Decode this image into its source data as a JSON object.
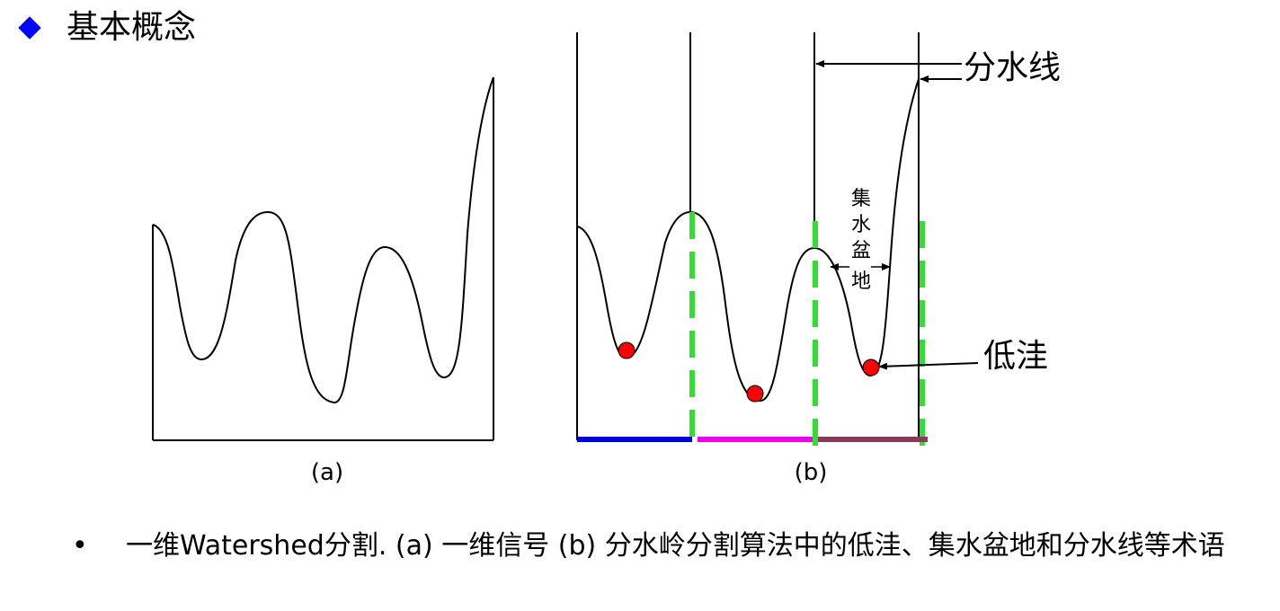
{
  "heading": {
    "icon": "diamond-bullet-icon",
    "text": "基本概念",
    "bullet_color": "#0000ff"
  },
  "figure_a": {
    "label": "(a)"
  },
  "figure_b": {
    "label": "(b)",
    "watershed_label": "分水线",
    "basin_label_chars": [
      "集",
      "水",
      "盆",
      "地"
    ],
    "minimum_label": "低洼",
    "colors": {
      "minima": "#ff0000",
      "dam": "#33dd33",
      "basin1": "#0000dd",
      "basin2": "#ee00ee",
      "basin3": "#8b3a5a"
    }
  },
  "caption": {
    "bullet": "•",
    "text": "一维Watershed分割. (a) 一维信号 (b) 分水岭分割算法中的低洼、集水盆地和分水线等术语"
  }
}
